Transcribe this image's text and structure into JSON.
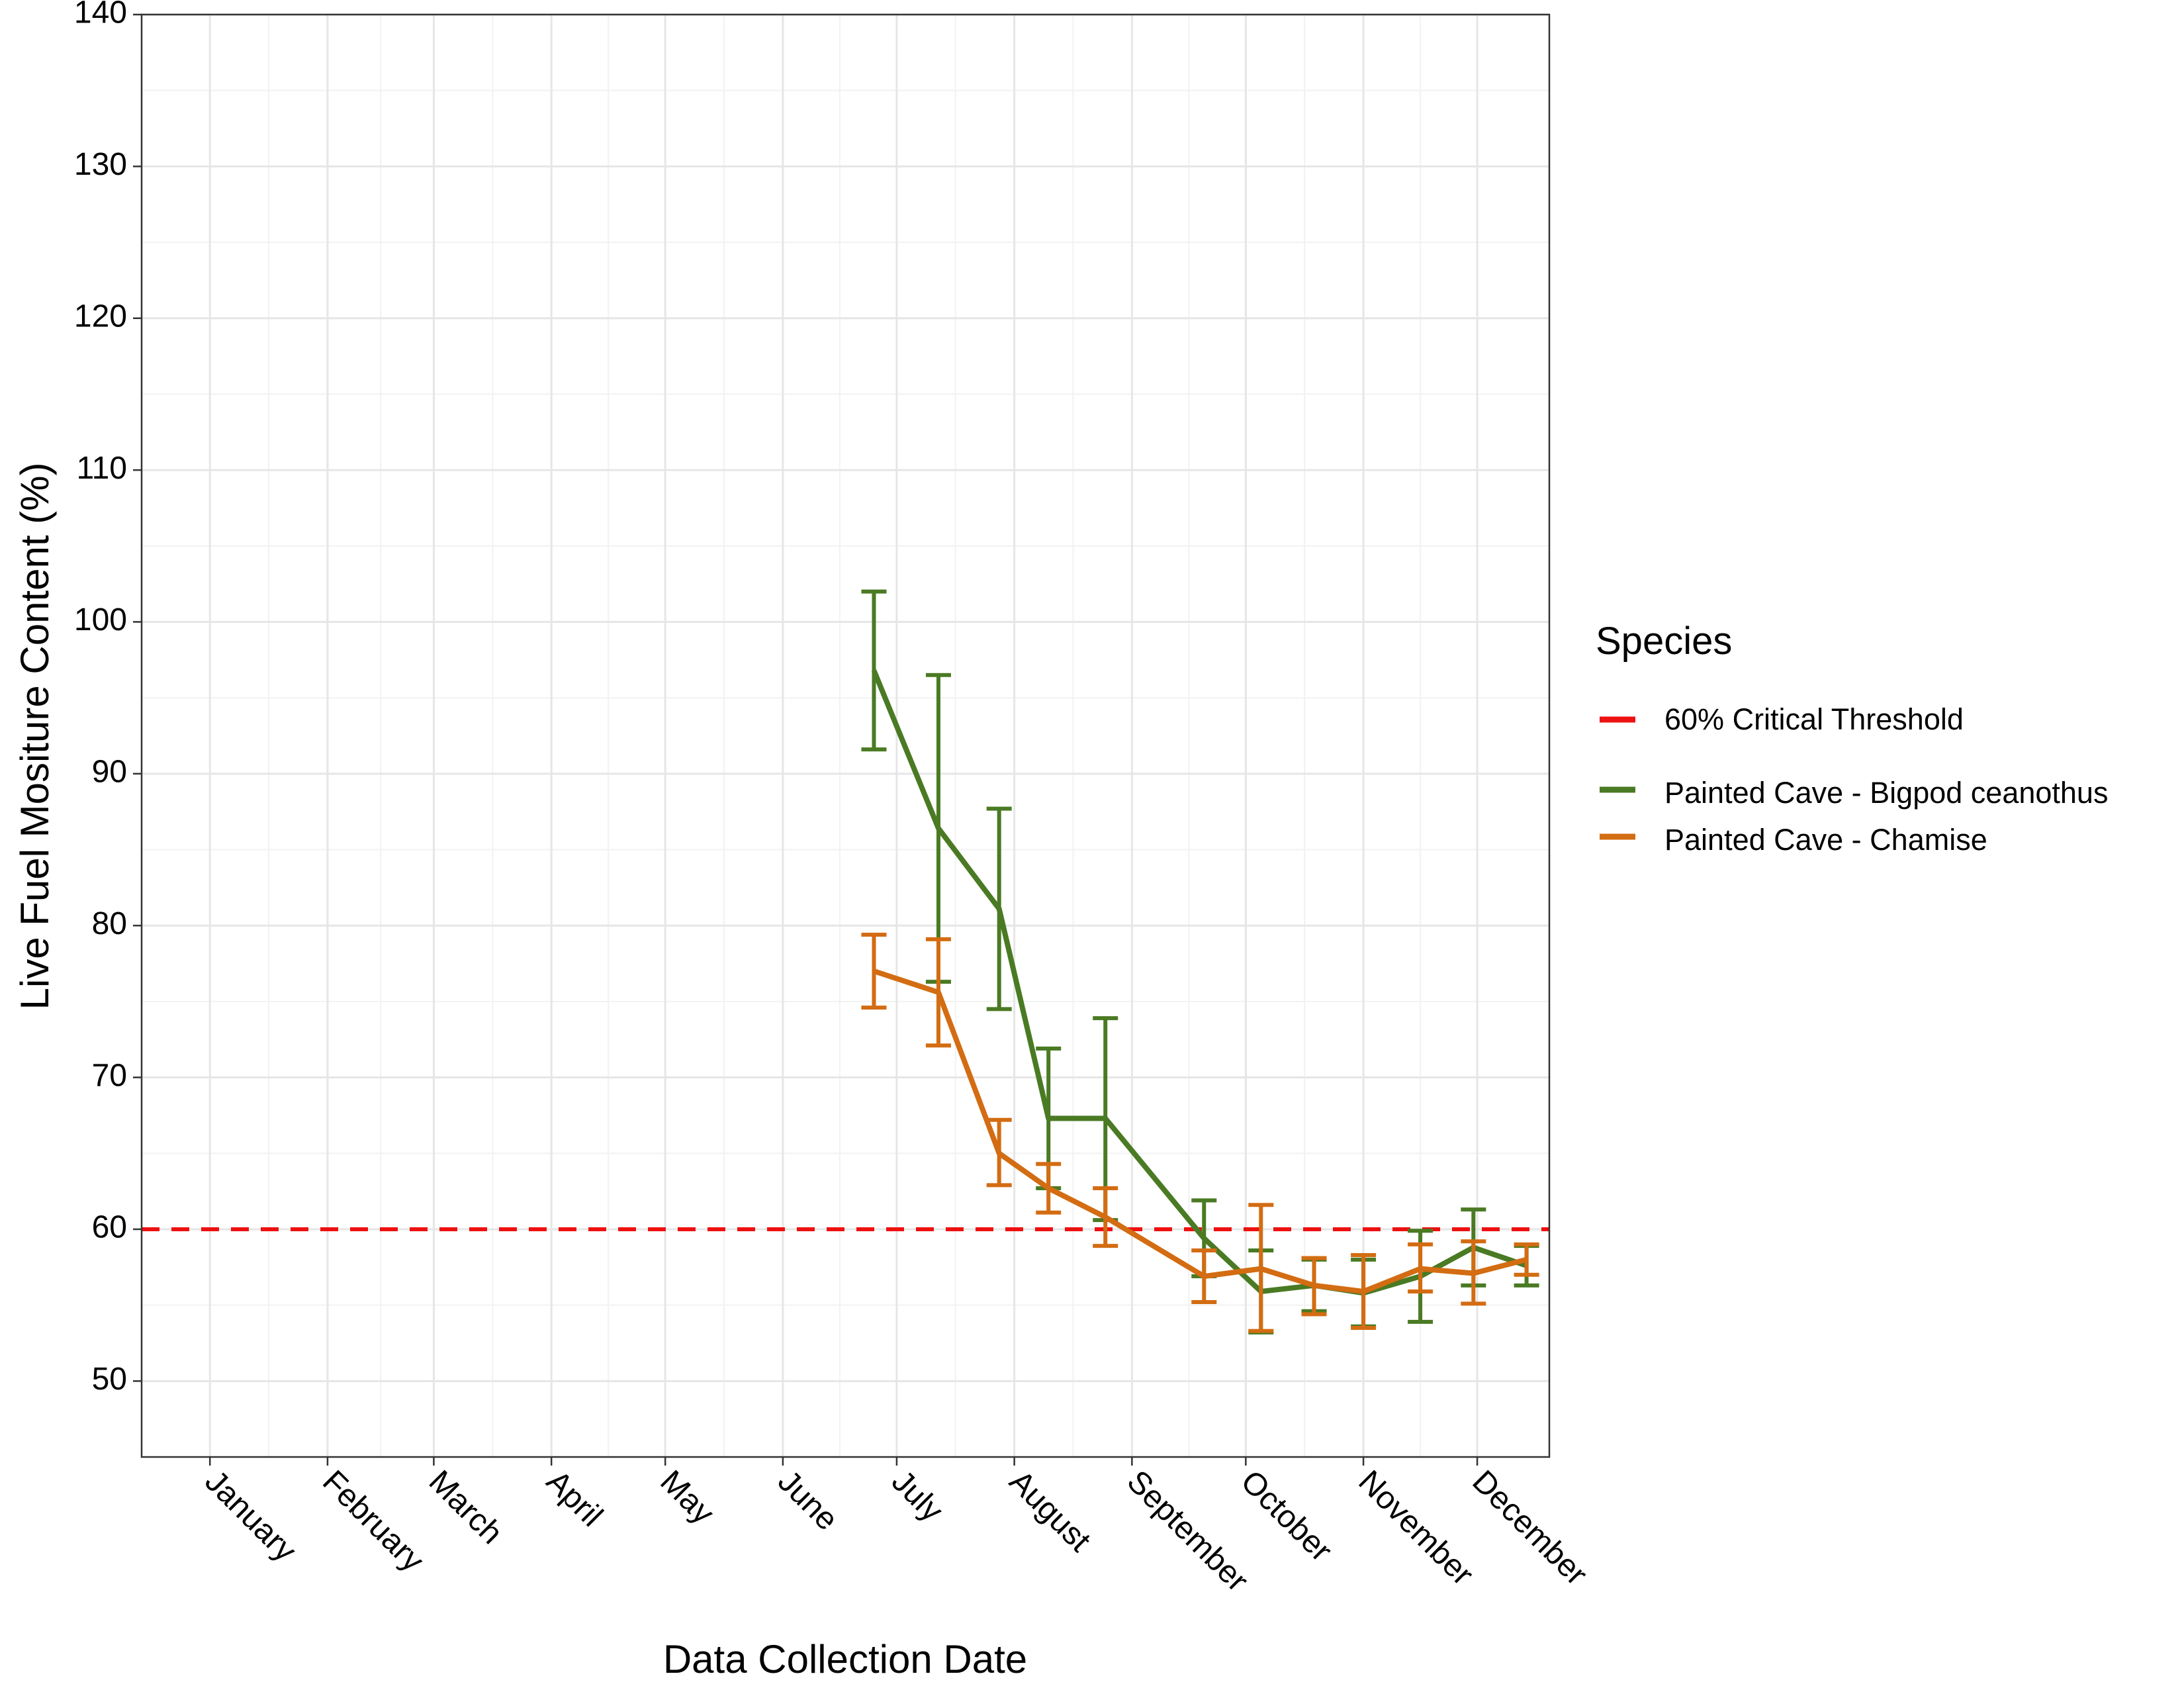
{
  "chart_data": {
    "type": "line",
    "xlabel": "Data Collection Date",
    "ylabel": "Live Fuel Mositure Content (%)",
    "x_ticks": [
      "January",
      "February",
      "March",
      "April",
      "May",
      "June",
      "July",
      "August",
      "September",
      "October",
      "November",
      "December"
    ],
    "x_tick_dates": [
      "2023-01-01",
      "2023-02-01",
      "2023-03-01",
      "2023-04-01",
      "2023-05-01",
      "2023-06-01",
      "2023-07-01",
      "2023-08-01",
      "2023-09-01",
      "2023-10-01",
      "2023-11-01",
      "2023-12-01"
    ],
    "xlim": [
      "2022-12-14",
      "2023-12-20"
    ],
    "ylim": [
      45,
      140
    ],
    "y_ticks": [
      50,
      60,
      70,
      80,
      90,
      100,
      110,
      120,
      130,
      140
    ],
    "grid": true,
    "threshold": {
      "name": "60% Critical Threshold",
      "value": 60,
      "color": "#ee1111",
      "style": "dashed"
    },
    "legend": {
      "title": "Species",
      "position": "right"
    },
    "series": [
      {
        "name": "Painted Cave - Bigpod ceanothus",
        "color": "#4a7a23",
        "points": [
          {
            "date": "2023-06-25",
            "y": 96.8,
            "ymin": 91.6,
            "ymax": 102.0
          },
          {
            "date": "2023-07-12",
            "y": 86.4,
            "ymin": 76.3,
            "ymax": 96.5
          },
          {
            "date": "2023-07-28",
            "y": 81.1,
            "ymin": 74.5,
            "ymax": 87.7
          },
          {
            "date": "2023-08-10",
            "y": 67.3,
            "ymin": 62.7,
            "ymax": 71.9
          },
          {
            "date": "2023-08-25",
            "y": 67.3,
            "ymin": 60.6,
            "ymax": 73.9
          },
          {
            "date": "2023-09-20",
            "y": 59.4,
            "ymin": 56.9,
            "ymax": 61.9
          },
          {
            "date": "2023-10-05",
            "y": 55.9,
            "ymin": 53.2,
            "ymax": 58.6
          },
          {
            "date": "2023-10-19",
            "y": 56.3,
            "ymin": 54.6,
            "ymax": 58.0
          },
          {
            "date": "2023-11-01",
            "y": 55.8,
            "ymin": 53.6,
            "ymax": 58.0
          },
          {
            "date": "2023-11-16",
            "y": 56.9,
            "ymin": 53.9,
            "ymax": 59.9
          },
          {
            "date": "2023-11-30",
            "y": 58.8,
            "ymin": 56.3,
            "ymax": 61.3
          },
          {
            "date": "2023-12-14",
            "y": 57.6,
            "ymin": 56.3,
            "ymax": 58.9
          }
        ]
      },
      {
        "name": "Painted Cave - Chamise",
        "color": "#d36c12",
        "points": [
          {
            "date": "2023-06-25",
            "y": 77.0,
            "ymin": 74.6,
            "ymax": 79.4
          },
          {
            "date": "2023-07-12",
            "y": 75.6,
            "ymin": 72.1,
            "ymax": 79.1
          },
          {
            "date": "2023-07-28",
            "y": 65.0,
            "ymin": 62.9,
            "ymax": 67.2
          },
          {
            "date": "2023-08-10",
            "y": 62.7,
            "ymin": 61.1,
            "ymax": 64.3
          },
          {
            "date": "2023-08-25",
            "y": 60.8,
            "ymin": 58.9,
            "ymax": 62.7
          },
          {
            "date": "2023-09-20",
            "y": 56.9,
            "ymin": 55.2,
            "ymax": 58.6
          },
          {
            "date": "2023-10-05",
            "y": 57.4,
            "ymin": 53.3,
            "ymax": 61.6
          },
          {
            "date": "2023-10-19",
            "y": 56.3,
            "ymin": 54.4,
            "ymax": 58.1
          },
          {
            "date": "2023-11-01",
            "y": 55.9,
            "ymin": 53.5,
            "ymax": 58.3
          },
          {
            "date": "2023-11-16",
            "y": 57.4,
            "ymin": 55.9,
            "ymax": 59.0
          },
          {
            "date": "2023-11-30",
            "y": 57.1,
            "ymin": 55.1,
            "ymax": 59.2
          },
          {
            "date": "2023-12-14",
            "y": 58.0,
            "ymin": 57.0,
            "ymax": 59.0
          }
        ]
      }
    ]
  }
}
